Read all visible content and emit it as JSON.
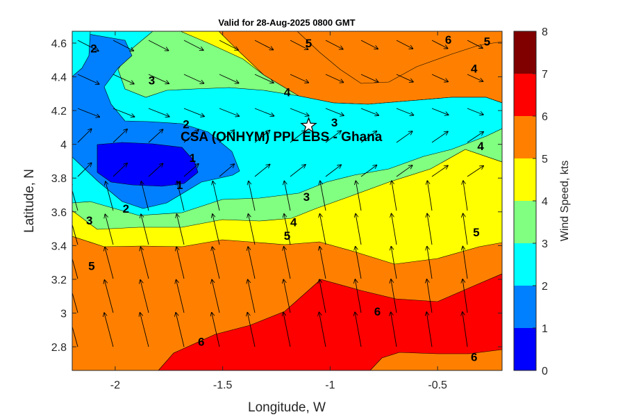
{
  "chart_data": {
    "type": "filled-contour",
    "title": "Valid for 28-Aug-2025 0800 GMT",
    "xlabel": "Longitude, W",
    "ylabel": "Latitude, N",
    "colorbar_label": "Wind Speed, kts",
    "xlim": [
      -2.2,
      -0.2
    ],
    "ylim": [
      2.66,
      4.67
    ],
    "x_ticks": [
      -2,
      -1.5,
      -1,
      -0.5
    ],
    "x_tick_labels": [
      "-2",
      "-1.5",
      "-1",
      "-0.5"
    ],
    "y_ticks": [
      2.8,
      3,
      3.2,
      3.4,
      3.6,
      3.8,
      4,
      4.2,
      4.4,
      4.6
    ],
    "y_tick_labels": [
      "2.8",
      "3",
      "3.2",
      "3.4",
      "3.6",
      "3.8",
      "4",
      "4.2",
      "4.4",
      "4.6"
    ],
    "colorbar_ticks": [
      "0",
      "1",
      "2",
      "3",
      "4",
      "5",
      "6",
      "7",
      "8"
    ],
    "levels": [
      0,
      1,
      2,
      3,
      4,
      5,
      6,
      7,
      8
    ],
    "level_colors": [
      "#0000ff",
      "#0080ff",
      "#00ffff",
      "#80ff80",
      "#ffff00",
      "#ff8000",
      "#ff0000",
      "#800000"
    ],
    "site": {
      "name": "CSA (ONHYM) PPL EBS  - Ghana",
      "lon": -1.1,
      "lat": 4.11
    },
    "contour_labels": [
      {
        "text": "1",
        "lon": -1.7,
        "lat": 3.76
      },
      {
        "text": "1",
        "lon": -1.64,
        "lat": 3.92
      },
      {
        "text": "2",
        "lon": -1.95,
        "lat": 3.62
      },
      {
        "text": "2",
        "lon": -1.67,
        "lat": 4.12
      },
      {
        "text": "2",
        "lon": -2.1,
        "lat": 4.57
      },
      {
        "text": "3",
        "lon": -2.12,
        "lat": 3.55
      },
      {
        "text": "3",
        "lon": -1.83,
        "lat": 4.38
      },
      {
        "text": "3",
        "lon": -1.11,
        "lat": 3.69
      },
      {
        "text": "3",
        "lon": -0.98,
        "lat": 4.13
      },
      {
        "text": "4",
        "lon": -1.17,
        "lat": 3.54
      },
      {
        "text": "4",
        "lon": -1.2,
        "lat": 4.31
      },
      {
        "text": "4",
        "lon": -0.3,
        "lat": 3.99
      },
      {
        "text": "4",
        "lon": -0.33,
        "lat": 4.45
      },
      {
        "text": "5",
        "lon": -2.11,
        "lat": 3.28
      },
      {
        "text": "5",
        "lon": -1.2,
        "lat": 3.46
      },
      {
        "text": "5",
        "lon": -1.1,
        "lat": 4.6
      },
      {
        "text": "5",
        "lon": -0.32,
        "lat": 3.48
      },
      {
        "text": "5",
        "lon": -0.27,
        "lat": 4.61
      },
      {
        "text": "6",
        "lon": -1.6,
        "lat": 2.83
      },
      {
        "text": "6",
        "lon": -0.78,
        "lat": 3.01
      },
      {
        "text": "6",
        "lon": -0.33,
        "lat": 2.74
      },
      {
        "text": "6",
        "lon": -0.45,
        "lat": 4.62
      }
    ]
  }
}
